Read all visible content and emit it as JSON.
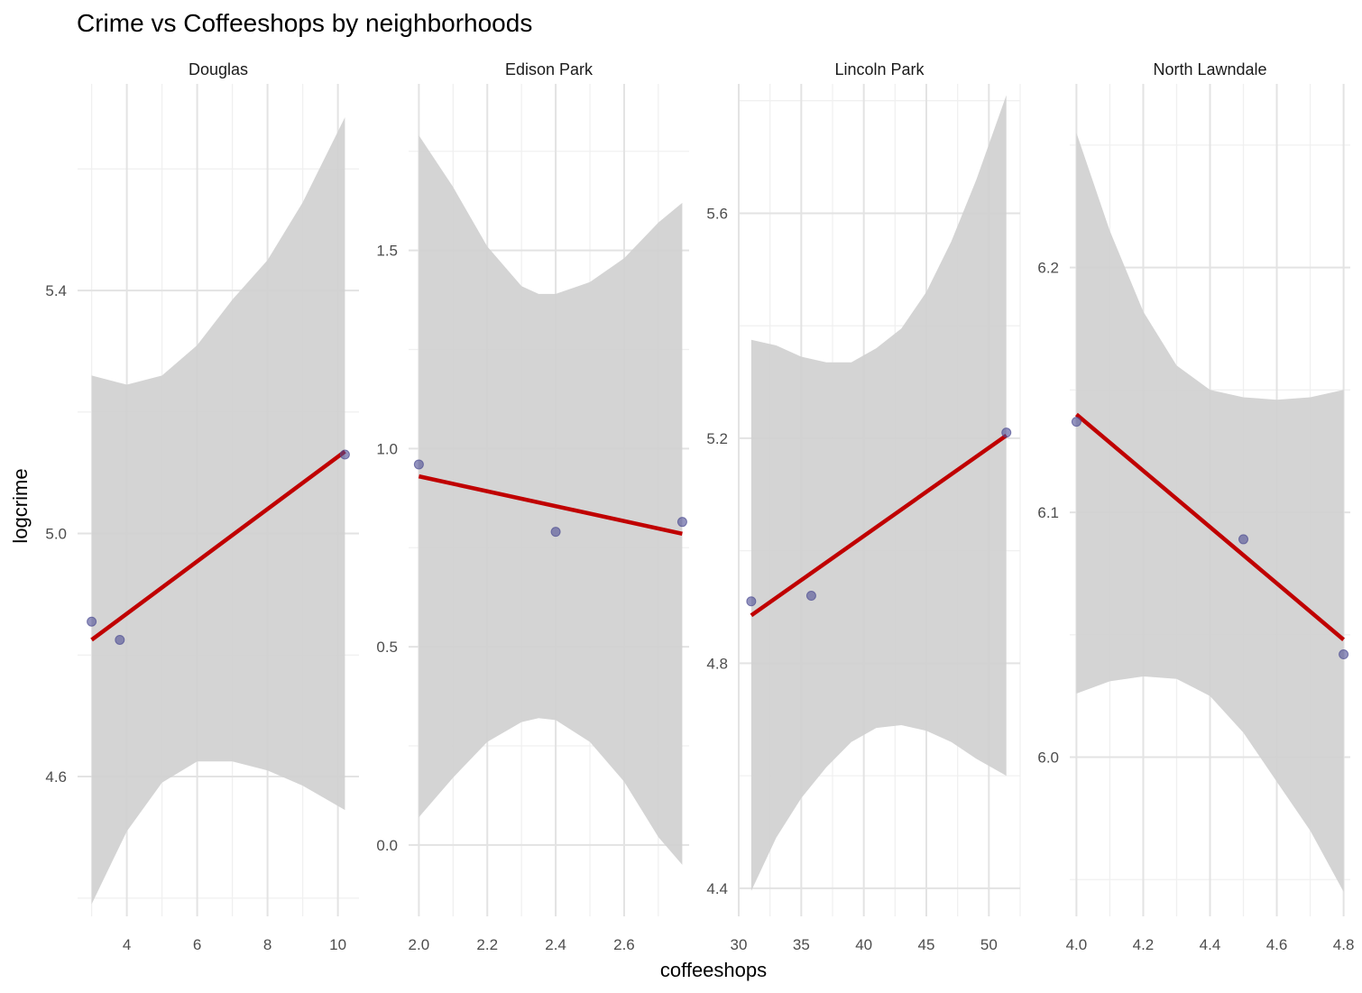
{
  "chart_data": {
    "type": "scatter",
    "title": "Crime vs Coffeeshops by neighborhoods",
    "xlabel": "coffeeshops",
    "ylabel": "logcrime",
    "grid": true,
    "legend": "none",
    "colors": {
      "point": "#4b4b92",
      "fit_line": "#c00000",
      "ribbon": "#cfcfcf",
      "grid_major": "#e3e3e3",
      "grid_minor": "#f0f0f0"
    },
    "panels": [
      {
        "name": "Douglas",
        "xlim": [
          2.6,
          10.6
        ],
        "ylim": [
          4.37,
          5.74
        ],
        "xticks": [
          4,
          6,
          8,
          10
        ],
        "xtick_labels": [
          "4",
          "6",
          "8",
          "10"
        ],
        "yticks": [
          4.6,
          5.0,
          5.4
        ],
        "ytick_labels": [
          "4.6",
          "5.0",
          "5.4"
        ],
        "points": [
          {
            "x": 3.0,
            "y": 4.855
          },
          {
            "x": 3.8,
            "y": 4.825
          },
          {
            "x": 10.2,
            "y": 5.13
          }
        ],
        "fit": {
          "x": [
            3.0,
            10.2
          ],
          "y": [
            4.825,
            5.135
          ]
        },
        "ribbon": {
          "x": [
            3.0,
            4.0,
            5.0,
            6.0,
            7.0,
            8.0,
            9.0,
            10.2
          ],
          "lower": [
            4.39,
            4.51,
            4.59,
            4.625,
            4.625,
            4.61,
            4.585,
            4.545
          ],
          "upper": [
            5.26,
            5.245,
            5.26,
            5.31,
            5.385,
            5.45,
            5.545,
            5.685
          ]
        }
      },
      {
        "name": "Edison Park",
        "xlim": [
          1.97,
          2.79
        ],
        "ylim": [
          -0.18,
          1.92
        ],
        "xticks": [
          2.0,
          2.2,
          2.4,
          2.6
        ],
        "xtick_labels": [
          "2.0",
          "2.2",
          "2.4",
          "2.6"
        ],
        "yticks": [
          0.0,
          0.5,
          1.0,
          1.5
        ],
        "ytick_labels": [
          "0.0",
          "0.5",
          "1.0",
          "1.5"
        ],
        "points": [
          {
            "x": 2.0,
            "y": 0.96
          },
          {
            "x": 2.4,
            "y": 0.79
          },
          {
            "x": 2.77,
            "y": 0.815
          }
        ],
        "fit": {
          "x": [
            2.0,
            2.77
          ],
          "y": [
            0.93,
            0.785
          ]
        },
        "ribbon": {
          "x": [
            2.0,
            2.1,
            2.2,
            2.3,
            2.35,
            2.4,
            2.5,
            2.6,
            2.7,
            2.77
          ],
          "lower": [
            0.07,
            0.17,
            0.26,
            0.31,
            0.32,
            0.315,
            0.26,
            0.16,
            0.02,
            -0.05
          ],
          "upper": [
            1.79,
            1.66,
            1.51,
            1.41,
            1.39,
            1.39,
            1.42,
            1.48,
            1.57,
            1.62
          ]
        }
      },
      {
        "name": "Lincoln Park",
        "xlim": [
          30.0,
          52.5
        ],
        "ylim": [
          4.35,
          5.83
        ],
        "xticks": [
          30,
          35,
          40,
          45,
          50
        ],
        "xtick_labels": [
          "30",
          "35",
          "40",
          "45",
          "50"
        ],
        "yticks": [
          4.4,
          4.8,
          5.2,
          5.6
        ],
        "ytick_labels": [
          "4.4",
          "4.8",
          "5.2",
          "5.6"
        ],
        "points": [
          {
            "x": 31.0,
            "y": 4.91
          },
          {
            "x": 35.8,
            "y": 4.92
          },
          {
            "x": 51.4,
            "y": 5.21
          }
        ],
        "fit": {
          "x": [
            31.0,
            51.4
          ],
          "y": [
            4.885,
            5.205
          ]
        },
        "ribbon": {
          "x": [
            31.0,
            33.0,
            35.0,
            37.0,
            39.0,
            41.0,
            43.0,
            45.0,
            47.0,
            49.0,
            51.4
          ],
          "lower": [
            4.395,
            4.49,
            4.56,
            4.615,
            4.66,
            4.685,
            4.69,
            4.68,
            4.66,
            4.63,
            4.6
          ],
          "upper": [
            5.375,
            5.365,
            5.345,
            5.335,
            5.335,
            5.36,
            5.395,
            5.46,
            5.55,
            5.66,
            5.81
          ]
        }
      },
      {
        "name": "North Lawndale",
        "xlim": [
          3.98,
          4.82
        ],
        "ylim": [
          5.935,
          6.275
        ],
        "xticks": [
          4.0,
          4.2,
          4.4,
          4.6,
          4.8
        ],
        "xtick_labels": [
          "4.0",
          "4.2",
          "4.4",
          "4.6",
          "4.8"
        ],
        "yticks": [
          6.0,
          6.1,
          6.2
        ],
        "ytick_labels": [
          "6.0",
          "6.1",
          "6.2"
        ],
        "points": [
          {
            "x": 4.0,
            "y": 6.137
          },
          {
            "x": 4.5,
            "y": 6.089
          },
          {
            "x": 4.8,
            "y": 6.042
          }
        ],
        "fit": {
          "x": [
            4.0,
            4.8
          ],
          "y": [
            6.14,
            6.048
          ]
        },
        "ribbon": {
          "x": [
            4.0,
            4.1,
            4.2,
            4.3,
            4.4,
            4.5,
            4.6,
            4.7,
            4.8
          ],
          "lower": [
            6.026,
            6.031,
            6.033,
            6.032,
            6.025,
            6.01,
            5.99,
            5.97,
            5.945
          ],
          "upper": [
            6.255,
            6.215,
            6.182,
            6.16,
            6.15,
            6.147,
            6.146,
            6.147,
            6.15
          ]
        }
      }
    ]
  }
}
